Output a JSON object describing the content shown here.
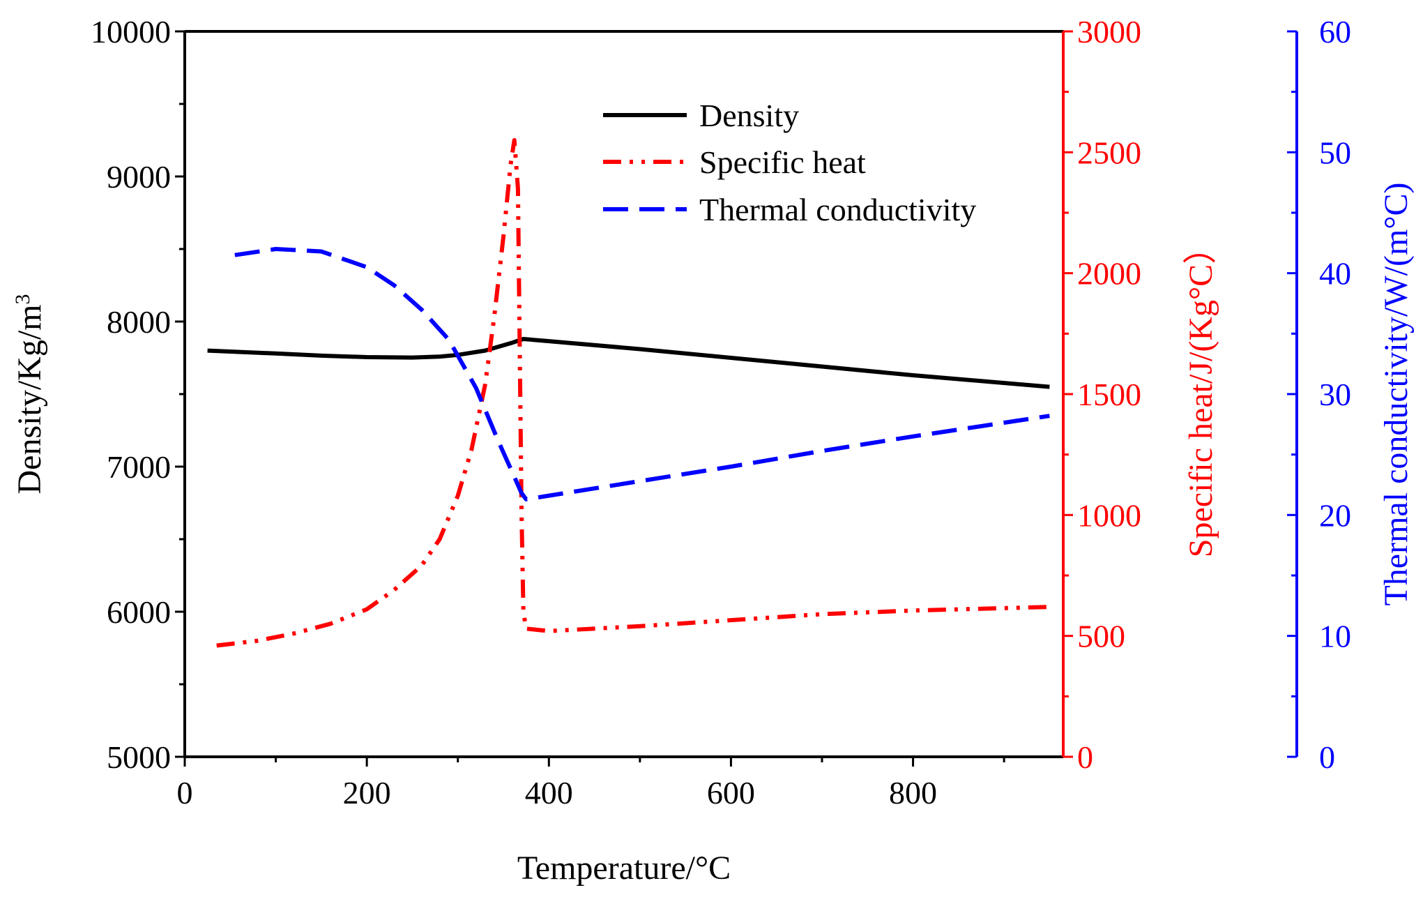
{
  "chart_data": {
    "type": "line",
    "title": "",
    "xlabel": "Temperature/°C",
    "xlim": [
      0,
      965
    ],
    "xticks": [
      0,
      200,
      400,
      600,
      800
    ],
    "x_minor_ticks": [
      100,
      300,
      500,
      700,
      900
    ],
    "axes": {
      "left": {
        "label": "Density/Kg/m",
        "label_superscript": "3",
        "ylim": [
          5000,
          10000
        ],
        "ticks": [
          5000,
          6000,
          7000,
          8000,
          9000,
          10000
        ],
        "color": "#000000"
      },
      "right1": {
        "label": "Specific heat/J/(Kg°C）",
        "ylim": [
          0,
          3000
        ],
        "ticks": [
          0,
          500,
          1000,
          1500,
          2000,
          2500,
          3000
        ],
        "color": "#ff0000"
      },
      "right2": {
        "label": "Thermal conductivity/W/(m°C)",
        "ylim": [
          0,
          60
        ],
        "ticks": [
          0,
          10,
          20,
          30,
          40,
          50,
          60
        ],
        "color": "#0000ff"
      }
    },
    "series": [
      {
        "name": "Density",
        "axis": "left",
        "color": "#000000",
        "style": "solid",
        "x": [
          25,
          100,
          150,
          200,
          250,
          280,
          300,
          330,
          360,
          372,
          400,
          500,
          600,
          700,
          800,
          950
        ],
        "y": [
          7800,
          7780,
          7765,
          7755,
          7752,
          7758,
          7770,
          7800,
          7855,
          7880,
          7865,
          7810,
          7750,
          7690,
          7630,
          7550
        ]
      },
      {
        "name": "Specific heat",
        "axis": "right1",
        "color": "#ff0000",
        "style": "dash-dot-dot",
        "x": [
          35,
          80,
          120,
          160,
          200,
          230,
          260,
          280,
          300,
          315,
          330,
          340,
          350,
          358,
          362,
          366,
          370,
          372,
          375,
          400,
          500,
          600,
          700,
          800,
          950
        ],
        "y": [
          460,
          480,
          510,
          550,
          610,
          690,
          790,
          900,
          1080,
          1270,
          1540,
          1820,
          2150,
          2450,
          2550,
          2350,
          1000,
          600,
          530,
          520,
          540,
          565,
          590,
          605,
          620
        ]
      },
      {
        "name": "Thermal conductivity",
        "axis": "right2",
        "color": "#0000ff",
        "style": "dashed",
        "x": [
          55,
          100,
          150,
          200,
          230,
          260,
          290,
          320,
          345,
          360,
          370,
          375,
          400,
          500,
          600,
          700,
          800,
          950
        ],
        "y": [
          41.5,
          42,
          41.8,
          40.5,
          39,
          37,
          34.5,
          30.5,
          26,
          23.5,
          21.8,
          21.3,
          21.6,
          22.8,
          24,
          25.3,
          26.5,
          28.2
        ]
      }
    ],
    "legend_position": "top-center"
  }
}
